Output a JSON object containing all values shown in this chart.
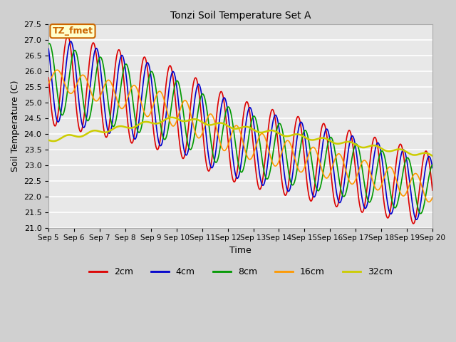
{
  "title": "Tonzi Soil Temperature Set A",
  "xlabel": "Time",
  "ylabel": "Soil Temperature (C)",
  "ylim": [
    21.0,
    27.5
  ],
  "xlim": [
    0,
    15
  ],
  "x_tick_labels": [
    "Sep 5",
    "Sep 6",
    "Sep 7",
    "Sep 8",
    "Sep 9",
    "Sep 10",
    "Sep 11",
    "Sep 12",
    "Sep 13",
    "Sep 14",
    "Sep 15",
    "Sep 16",
    "Sep 17",
    "Sep 18",
    "Sep 19",
    "Sep 20"
  ],
  "annotation_text": "TZ_fmet",
  "annotation_color": "#cc6600",
  "annotation_bg": "#ffffcc",
  "fig_bg_color": "#d0d0d0",
  "plot_bg_color": "#e8e8e8",
  "line_colors": {
    "2cm": "#dd0000",
    "4cm": "#0000cc",
    "8cm": "#009900",
    "16cm": "#ff9900",
    "32cm": "#cccc00"
  },
  "legend_labels": [
    "2cm",
    "4cm",
    "8cm",
    "16cm",
    "32cm"
  ],
  "yticks": [
    21.0,
    21.5,
    22.0,
    22.5,
    23.0,
    23.5,
    24.0,
    24.5,
    25.0,
    25.5,
    26.0,
    26.5,
    27.0,
    27.5
  ]
}
